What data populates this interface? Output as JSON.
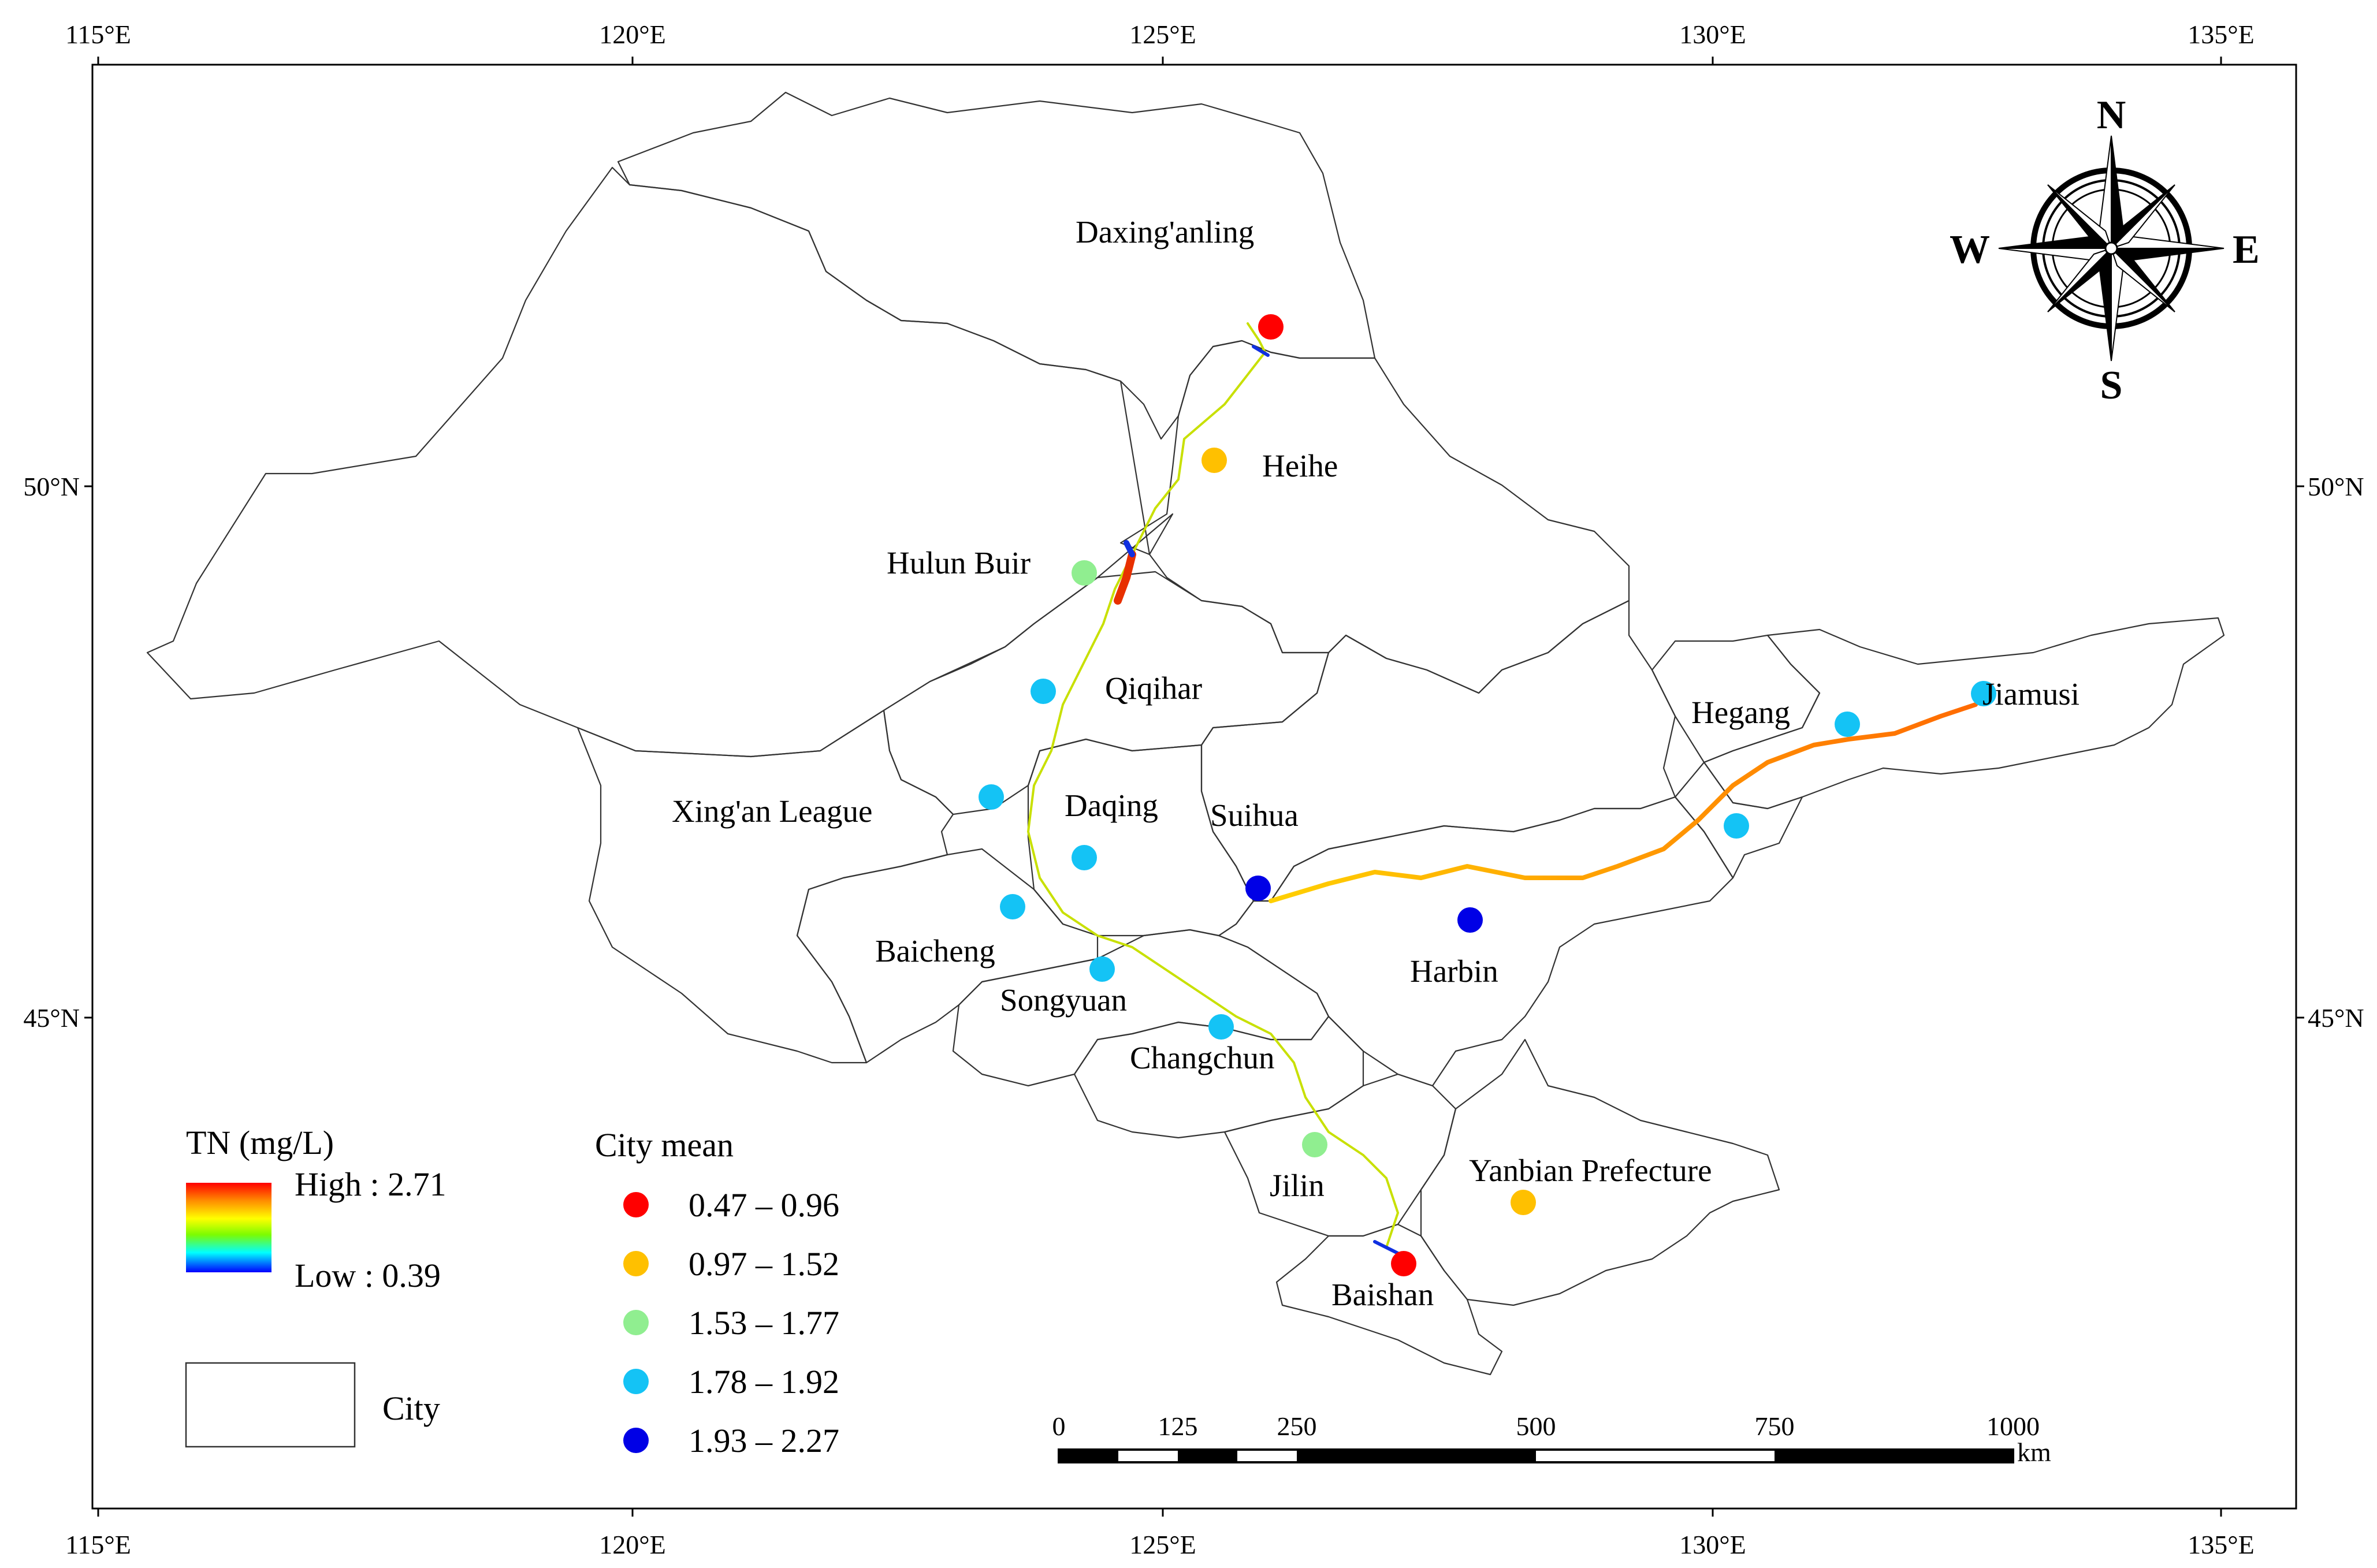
{
  "map": {
    "graticule": {
      "top_longitudes": [
        "115°E",
        "120°E",
        "125°E",
        "130°E",
        "135°E"
      ],
      "bottom_longitudes": [
        "115°E",
        "120°E",
        "125°E",
        "130°E",
        "135°E"
      ],
      "left_latitudes": [
        "50°N",
        "45°N"
      ],
      "right_latitudes": [
        "50°N",
        "45°N"
      ]
    },
    "compass": {
      "n": "N",
      "s": "S",
      "e": "E",
      "w": "W"
    },
    "cities": [
      {
        "name": "Daxing'anling",
        "class": 0
      },
      {
        "name": "Heihe",
        "class": 1
      },
      {
        "name": "Hulun Buir",
        "class": 2
      },
      {
        "name": "Qiqihar",
        "class": 3
      },
      {
        "name": "Xing'an League",
        "class": 3
      },
      {
        "name": "Daqing",
        "class": 3
      },
      {
        "name": "Suihua",
        "class": 4
      },
      {
        "name": "Baicheng",
        "class": 3
      },
      {
        "name": "Songyuan",
        "class": 3
      },
      {
        "name": "Harbin",
        "class": 4
      },
      {
        "name": "Changchun",
        "class": 3
      },
      {
        "name": "Jilin",
        "class": 2
      },
      {
        "name": "Yanbian Prefecture",
        "class": 1
      },
      {
        "name": "Baishan",
        "class": 0
      },
      {
        "name": "Hegang",
        "class": 3
      },
      {
        "name": "Jiamusi",
        "class": 3
      }
    ],
    "unlabeled_point_classes": [
      3
    ],
    "legend_tn": {
      "title": "TN (mg/L)",
      "high": "High : 2.71",
      "low": "Low : 0.39",
      "colors": [
        "#ff0000",
        "#ff8c00",
        "#ffff00",
        "#7cfc00",
        "#00ffff",
        "#0000ff"
      ]
    },
    "legend_city": {
      "label": "City"
    },
    "legend_city_mean": {
      "title": "City mean",
      "classes": [
        {
          "range": "0.47 – 0.96",
          "color": "#ff0000"
        },
        {
          "range": "0.97 – 1.52",
          "color": "#ffc000"
        },
        {
          "range": "1.53 – 1.77",
          "color": "#90ee90"
        },
        {
          "range": "1.78 – 1.92",
          "color": "#14c3f5"
        },
        {
          "range": "1.93 – 2.27",
          "color": "#0000e6"
        }
      ]
    },
    "scale_bar": {
      "ticks": [
        "0",
        "125",
        "250",
        "500",
        "750",
        "1000"
      ],
      "unit": "km"
    }
  }
}
